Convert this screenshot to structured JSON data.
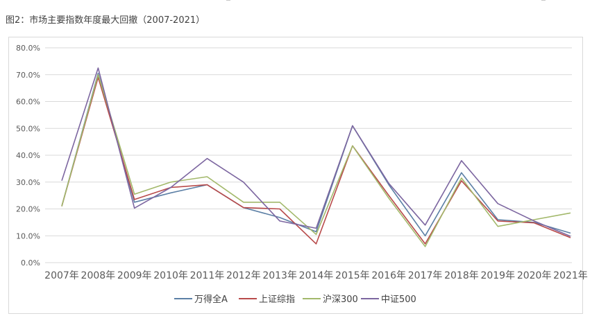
{
  "caption": "图2：市场主要指数年度最大回撤（2007-2021）",
  "colors": {
    "gridline": "#d9d9d9",
    "axis_text": "#595959"
  },
  "chart_data": {
    "type": "line",
    "title": "",
    "xlabel": "",
    "ylabel": "",
    "x": [
      "2007年",
      "2008年",
      "2009年",
      "2010年",
      "2011年",
      "2012年",
      "2013年",
      "2014年",
      "2015年",
      "2016年",
      "2017年",
      "2018年",
      "2019年",
      "2020年",
      "2021年"
    ],
    "ylim": [
      0,
      80
    ],
    "yticks": [
      "0.0%",
      "10.0%",
      "20.0%",
      "30.0%",
      "40.0%",
      "50.0%",
      "60.0%",
      "70.0%",
      "80.0%"
    ],
    "grid": true,
    "legend": "bottom",
    "series": [
      {
        "name": "万得全A",
        "color": "#5b7fa5",
        "values": [
          21.0,
          70.5,
          22.5,
          26.0,
          29.0,
          20.5,
          16.8,
          11.5,
          51.0,
          29.0,
          10.0,
          33.5,
          16.0,
          15.0,
          11.0
        ]
      },
      {
        "name": "上证综指",
        "color": "#b84a4a",
        "values": [
          21.0,
          69.0,
          23.5,
          28.0,
          29.0,
          20.5,
          20.0,
          7.0,
          43.5,
          25.0,
          7.0,
          30.5,
          15.5,
          14.8,
          9.3
        ]
      },
      {
        "name": "沪深300",
        "color": "#a2b86a",
        "values": [
          21.0,
          70.0,
          25.5,
          30.0,
          32.0,
          22.5,
          22.5,
          10.5,
          43.5,
          24.0,
          6.0,
          31.5,
          13.5,
          16.0,
          18.5
        ]
      },
      {
        "name": "中证500",
        "color": "#7c66a0",
        "values": [
          30.5,
          72.5,
          20.3,
          28.0,
          38.8,
          30.0,
          15.5,
          12.8,
          51.0,
          29.5,
          14.0,
          38.0,
          22.0,
          15.5,
          9.8
        ]
      }
    ]
  }
}
